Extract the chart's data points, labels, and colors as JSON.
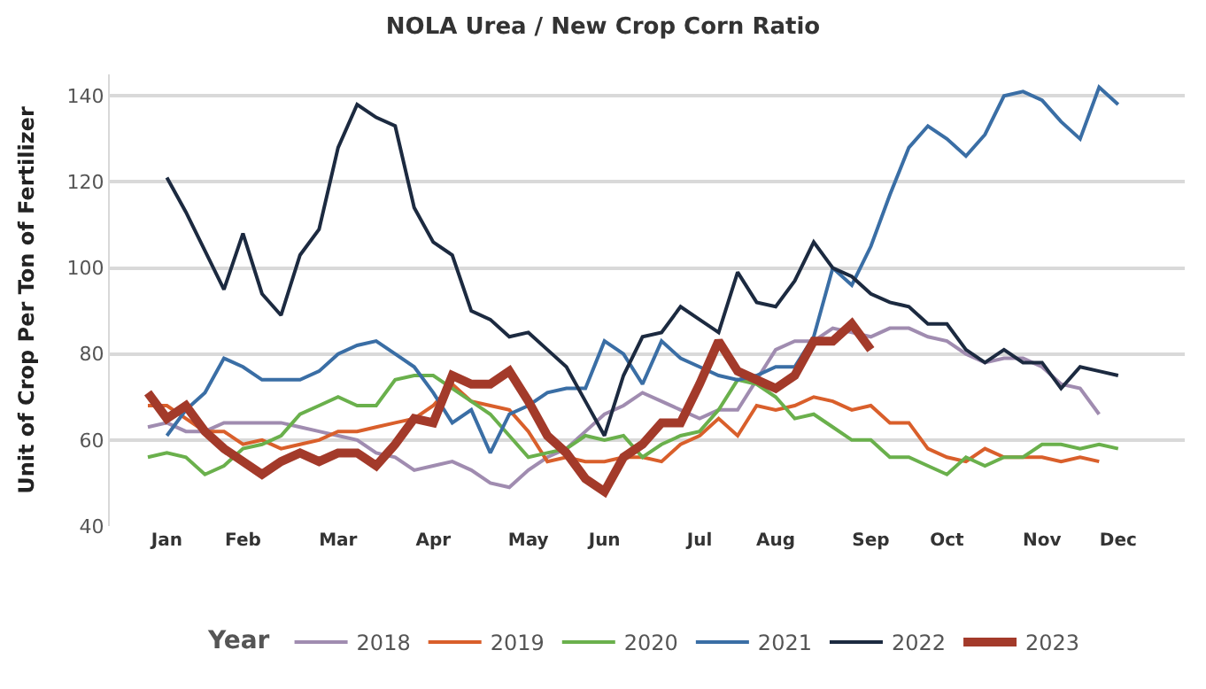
{
  "chart_data": {
    "type": "line",
    "title": "NOLA Urea / New Crop Corn Ratio",
    "ylabel": "Unit of Crop Per Ton of Fertilizer",
    "legend_title": "Year",
    "categories": [
      null,
      "Jan",
      null,
      null,
      null,
      "Feb",
      null,
      null,
      null,
      null,
      "Mar",
      null,
      null,
      null,
      null,
      "Apr",
      null,
      null,
      null,
      null,
      "May",
      null,
      null,
      null,
      "Jun",
      null,
      null,
      null,
      null,
      "Jul",
      null,
      null,
      null,
      "Aug",
      null,
      null,
      null,
      null,
      "Sep",
      null,
      null,
      null,
      "Oct",
      null,
      null,
      null,
      null,
      "Nov",
      null,
      null,
      null,
      "Dec"
    ],
    "ylim": [
      40,
      145
    ],
    "yticks": [
      40,
      60,
      80,
      100,
      120,
      140
    ],
    "grid": "y",
    "legend": "bottom",
    "marker": "none",
    "line_style": "solid",
    "series": [
      {
        "name": "2018",
        "color": "#a08cb0",
        "values": [
          63,
          64,
          62,
          62,
          64,
          64,
          64,
          64,
          63,
          62,
          61,
          60,
          57,
          56,
          53,
          54,
          55,
          53,
          50,
          49,
          53,
          56,
          58,
          62,
          66,
          68,
          71,
          69,
          67,
          65,
          67,
          67,
          74,
          81,
          83,
          83,
          86,
          85,
          84,
          86,
          86,
          84,
          83,
          80,
          78,
          79,
          79,
          77,
          73,
          72,
          66,
          null
        ]
      },
      {
        "name": "2019",
        "color": "#d95f2b",
        "values": [
          68,
          68,
          65,
          62,
          62,
          59,
          60,
          58,
          59,
          60,
          62,
          62,
          63,
          64,
          65,
          68,
          73,
          69,
          68,
          67,
          62,
          55,
          56,
          55,
          55,
          56,
          56,
          55,
          59,
          61,
          65,
          61,
          68,
          67,
          68,
          70,
          69,
          67,
          68,
          64,
          64,
          58,
          56,
          55,
          58,
          56,
          56,
          56,
          55,
          56,
          55,
          null
        ]
      },
      {
        "name": "2020",
        "color": "#6ab04c",
        "values": [
          56,
          57,
          56,
          52,
          54,
          58,
          59,
          61,
          66,
          68,
          70,
          68,
          68,
          74,
          75,
          75,
          72,
          69,
          66,
          61,
          56,
          57,
          58,
          61,
          60,
          61,
          56,
          59,
          61,
          62,
          67,
          74,
          73,
          70,
          65,
          66,
          63,
          60,
          60,
          56,
          56,
          54,
          52,
          56,
          54,
          56,
          56,
          59,
          59,
          58,
          59,
          58
        ]
      },
      {
        "name": "2021",
        "color": "#3a6ea5",
        "values": [
          null,
          61,
          67,
          71,
          79,
          77,
          74,
          74,
          74,
          76,
          80,
          82,
          83,
          80,
          77,
          71,
          64,
          67,
          57,
          66,
          68,
          71,
          72,
          72,
          83,
          80,
          73,
          83,
          79,
          77,
          75,
          74,
          75,
          77,
          77,
          84,
          100,
          96,
          105,
          117,
          128,
          133,
          130,
          126,
          131,
          140,
          141,
          139,
          134,
          130,
          142,
          138
        ]
      },
      {
        "name": "2022",
        "color": "#1c2a40",
        "values": [
          null,
          121,
          113,
          104,
          95,
          108,
          94,
          89,
          103,
          109,
          128,
          138,
          135,
          133,
          114,
          106,
          103,
          90,
          88,
          84,
          85,
          81,
          77,
          69,
          61,
          75,
          84,
          85,
          91,
          88,
          85,
          99,
          92,
          91,
          97,
          106,
          100,
          98,
          94,
          92,
          91,
          87,
          87,
          81,
          78,
          81,
          78,
          78,
          72,
          77,
          76,
          75
        ]
      },
      {
        "name": "2023",
        "color": "#a33a2a",
        "values": [
          71,
          65,
          68,
          62,
          58,
          55,
          52,
          55,
          57,
          55,
          57,
          57,
          54,
          59,
          65,
          64,
          75,
          73,
          73,
          76,
          69,
          61,
          57,
          51,
          48,
          56,
          59,
          64,
          64,
          73,
          83,
          76,
          74,
          72,
          75,
          83,
          83,
          87,
          81,
          null,
          null,
          null,
          null,
          null,
          null,
          null,
          null,
          null,
          null,
          null,
          null,
          null
        ]
      }
    ]
  }
}
